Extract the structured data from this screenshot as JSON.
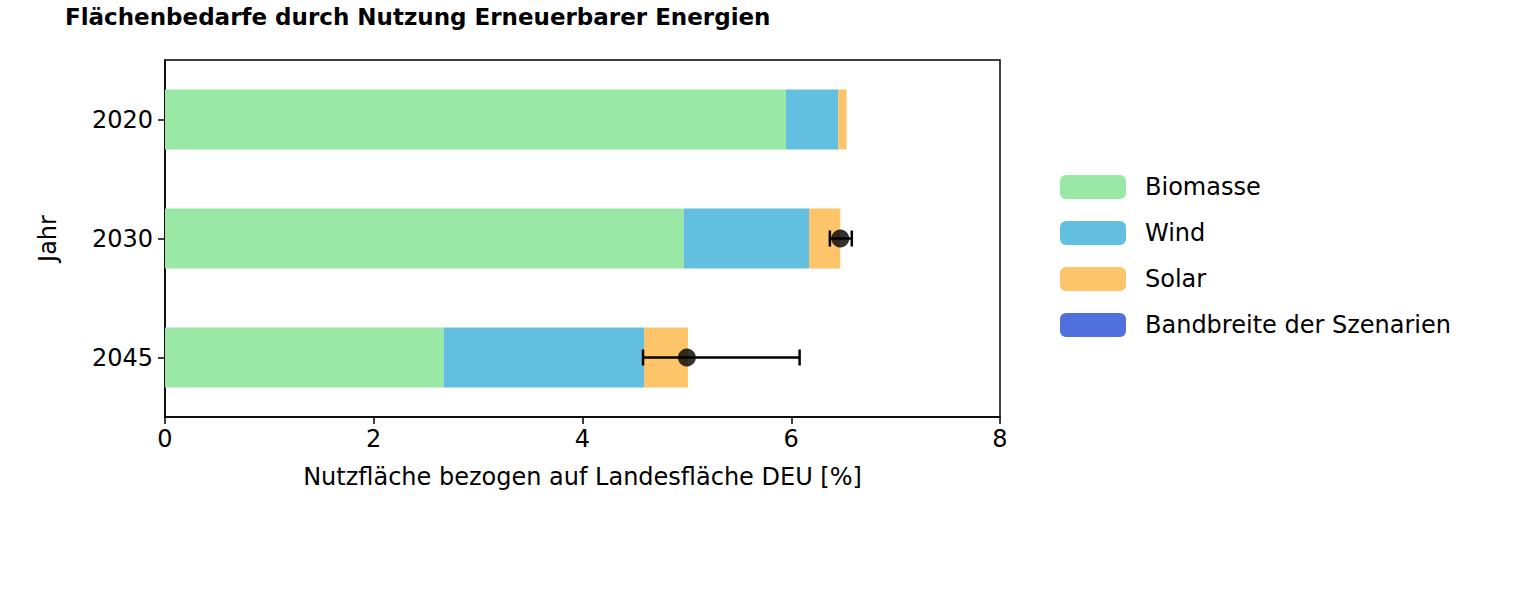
{
  "chart_data": {
    "type": "bar",
    "title": "Flächenbedarfe durch Nutzung Erneuerbarer Energien",
    "orientation": "horizontal",
    "stacked": true,
    "grid": false,
    "legend": "right",
    "x_label": "Nutzfläche bezogen auf Landesfläche DEU [%]",
    "y_label": "Jahr",
    "categories": [
      "2020",
      "2030",
      "2045"
    ],
    "xlim": [
      0,
      8
    ],
    "xticks": [
      0,
      2,
      4,
      6,
      8
    ],
    "series": [
      {
        "name": "Biomasse",
        "color": "#9ae8a6",
        "values": [
          5.95,
          4.97,
          2.67
        ]
      },
      {
        "name": "Wind",
        "color": "#63bfe0",
        "values": [
          0.5,
          1.2,
          1.92
        ]
      },
      {
        "name": "Solar",
        "color": "#fec46a",
        "values": [
          0.08,
          0.3,
          0.42
        ]
      },
      {
        "name": "Bandbreite der Szenarien",
        "type": "errorbar",
        "marker": "circle",
        "color": "#000000",
        "values": [
          null,
          6.47,
          5.0
        ],
        "low": [
          null,
          6.37,
          4.58
        ],
        "high": [
          null,
          6.58,
          6.08
        ]
      }
    ]
  }
}
